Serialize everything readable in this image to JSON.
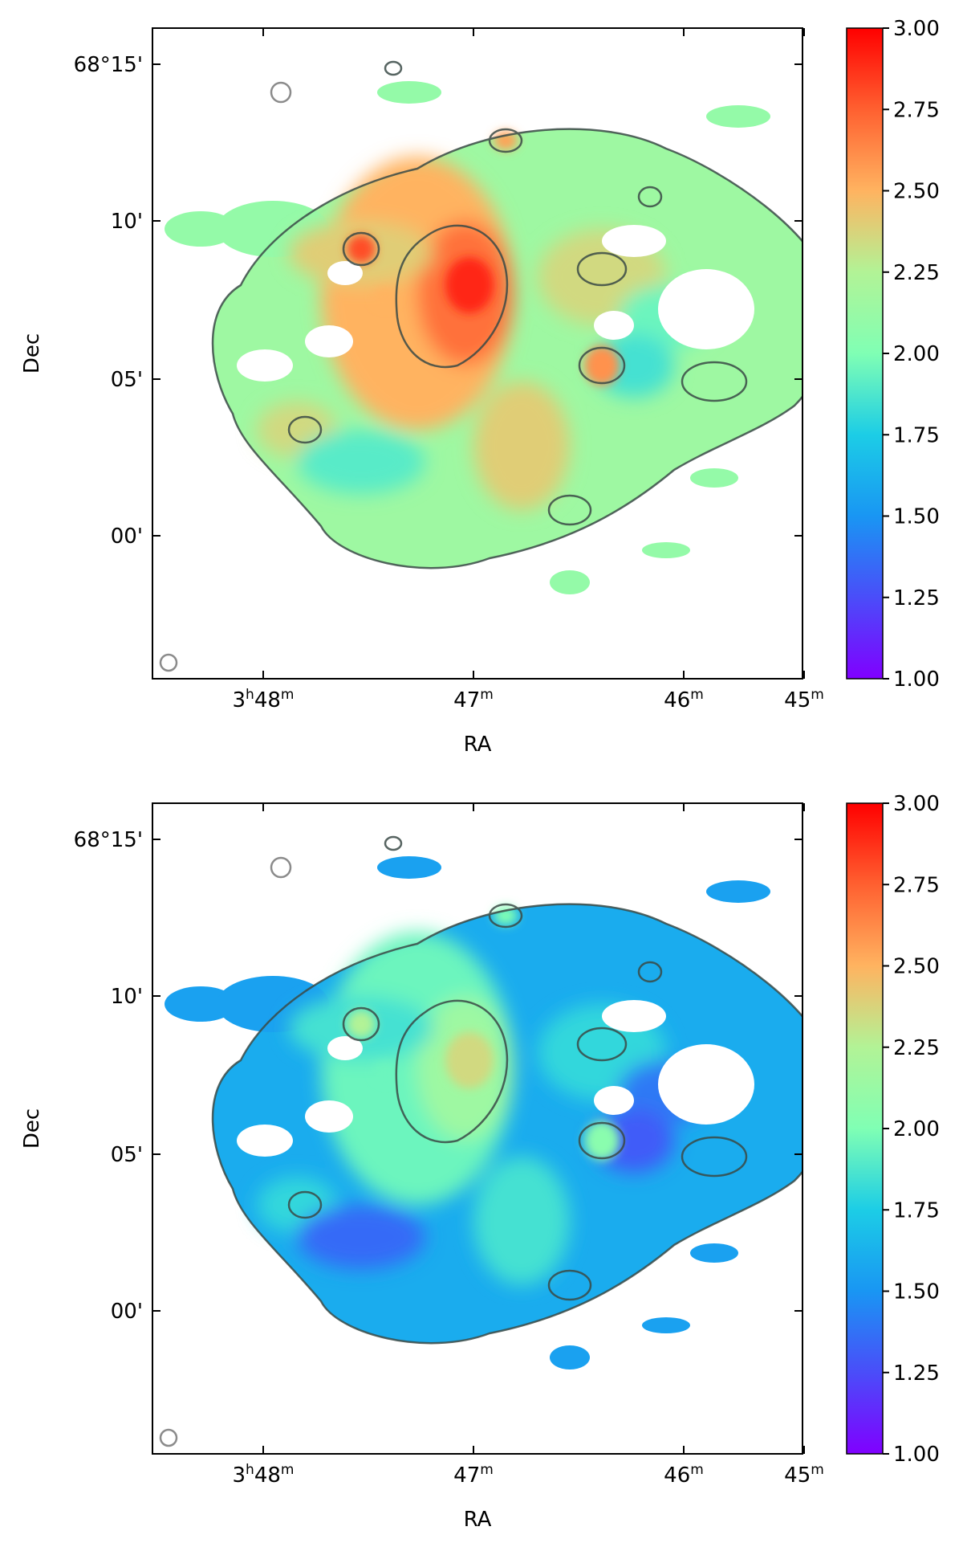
{
  "chart_data": [
    {
      "type": "heatmap",
      "title": "",
      "xlabel": "RA",
      "ylabel": "Dec",
      "x_ticks": [
        {
          "main": "3",
          "sup1": "h",
          "mid": "48",
          "sup2": "m"
        },
        {
          "main": "",
          "sup1": "",
          "mid": "47",
          "sup2": "m"
        },
        {
          "main": "",
          "sup1": "",
          "mid": "46",
          "sup2": "m"
        },
        {
          "main": "",
          "sup1": "",
          "mid": "45",
          "sup2": "m"
        }
      ],
      "y_ticks": [
        "68°15'",
        "10'",
        "05'",
        "00'"
      ],
      "colorbar": {
        "colormap": "rainbow",
        "ticks": [
          "3.00",
          "2.75",
          "2.50",
          "2.25",
          "2.00",
          "1.75",
          "1.50",
          "1.25",
          "1.00"
        ],
        "range": [
          1.0,
          3.0
        ]
      },
      "map_mean": 2.15,
      "contours": true
    },
    {
      "type": "heatmap",
      "title": "",
      "xlabel": "RA",
      "ylabel": "Dec",
      "x_ticks": [
        {
          "main": "3",
          "sup1": "h",
          "mid": "48",
          "sup2": "m"
        },
        {
          "main": "",
          "sup1": "",
          "mid": "47",
          "sup2": "m"
        },
        {
          "main": "",
          "sup1": "",
          "mid": "46",
          "sup2": "m"
        },
        {
          "main": "",
          "sup1": "",
          "mid": "45",
          "sup2": "m"
        }
      ],
      "y_ticks": [
        "68°15'",
        "10'",
        "05'",
        "00'"
      ],
      "colorbar": {
        "colormap": "rainbow",
        "ticks": [
          "3.00",
          "2.75",
          "2.50",
          "2.25",
          "2.00",
          "1.75",
          "1.50",
          "1.25",
          "1.00"
        ],
        "range": [
          1.0,
          3.0
        ]
      },
      "map_mean": 1.6,
      "contours": true
    }
  ]
}
